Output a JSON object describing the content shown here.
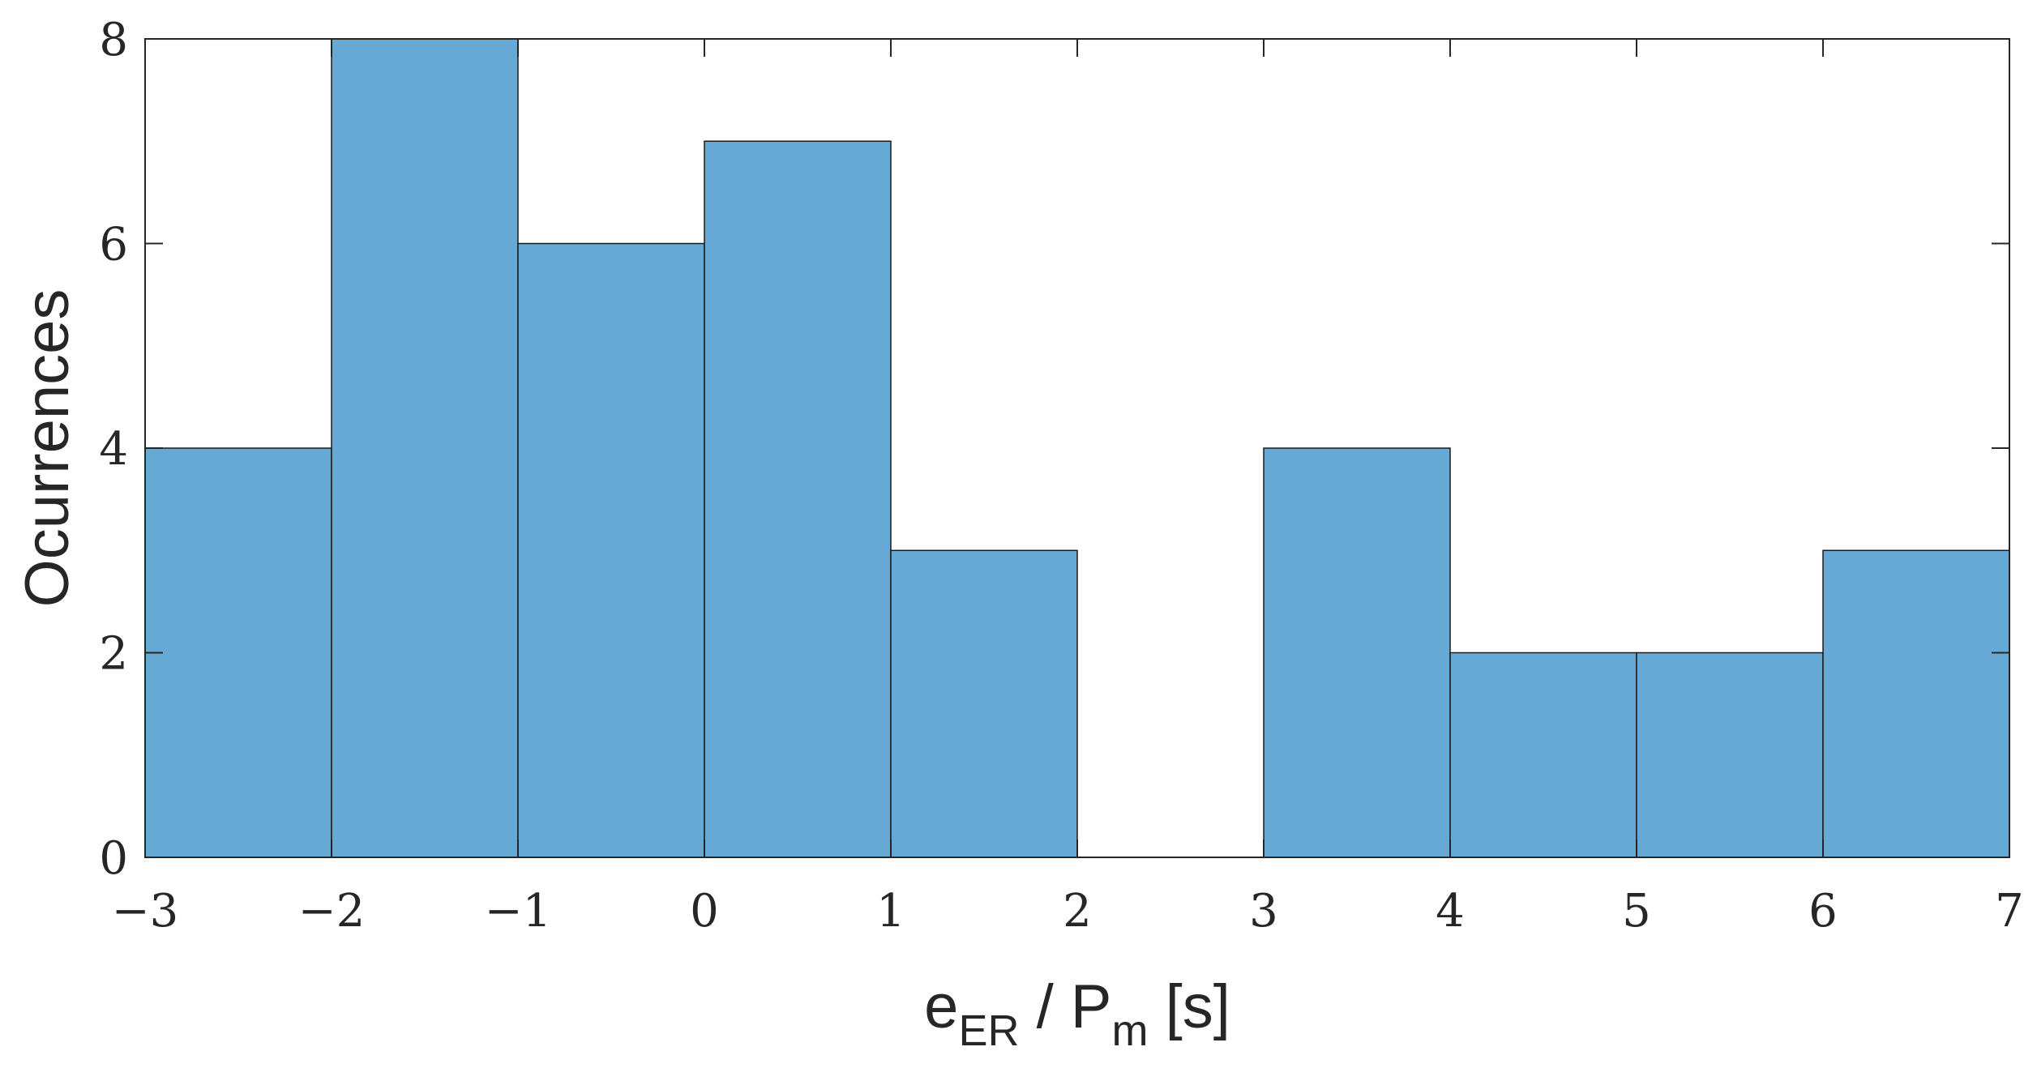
{
  "chart_data": {
    "type": "bar",
    "bin_edges": [
      -3,
      -2,
      -1,
      0,
      1,
      2,
      3,
      4,
      5,
      6,
      7
    ],
    "values": [
      4,
      8,
      6,
      7,
      3,
      0,
      4,
      2,
      2,
      3
    ],
    "xlim": [
      -3,
      7
    ],
    "ylim": [
      0,
      8
    ],
    "xticks": [
      -3,
      -2,
      -1,
      0,
      1,
      2,
      3,
      4,
      5,
      6,
      7
    ],
    "yticks": [
      0,
      2,
      4,
      6,
      8
    ],
    "xtick_labels": [
      "−3",
      "−2",
      "−1",
      "0",
      "1",
      "2",
      "3",
      "4",
      "5",
      "6",
      "7"
    ],
    "ytick_labels": [
      "0",
      "2",
      "4",
      "6",
      "8"
    ],
    "xlabel": {
      "base": "e",
      "sub1": "ER",
      "mid": " / P",
      "sub2": "m",
      "tail": " [s]"
    },
    "ylabel": "Ocurrences",
    "bar_color": "#66a9d5",
    "bar_edge_color": "#1a1a1a",
    "grid": false,
    "box": true
  }
}
